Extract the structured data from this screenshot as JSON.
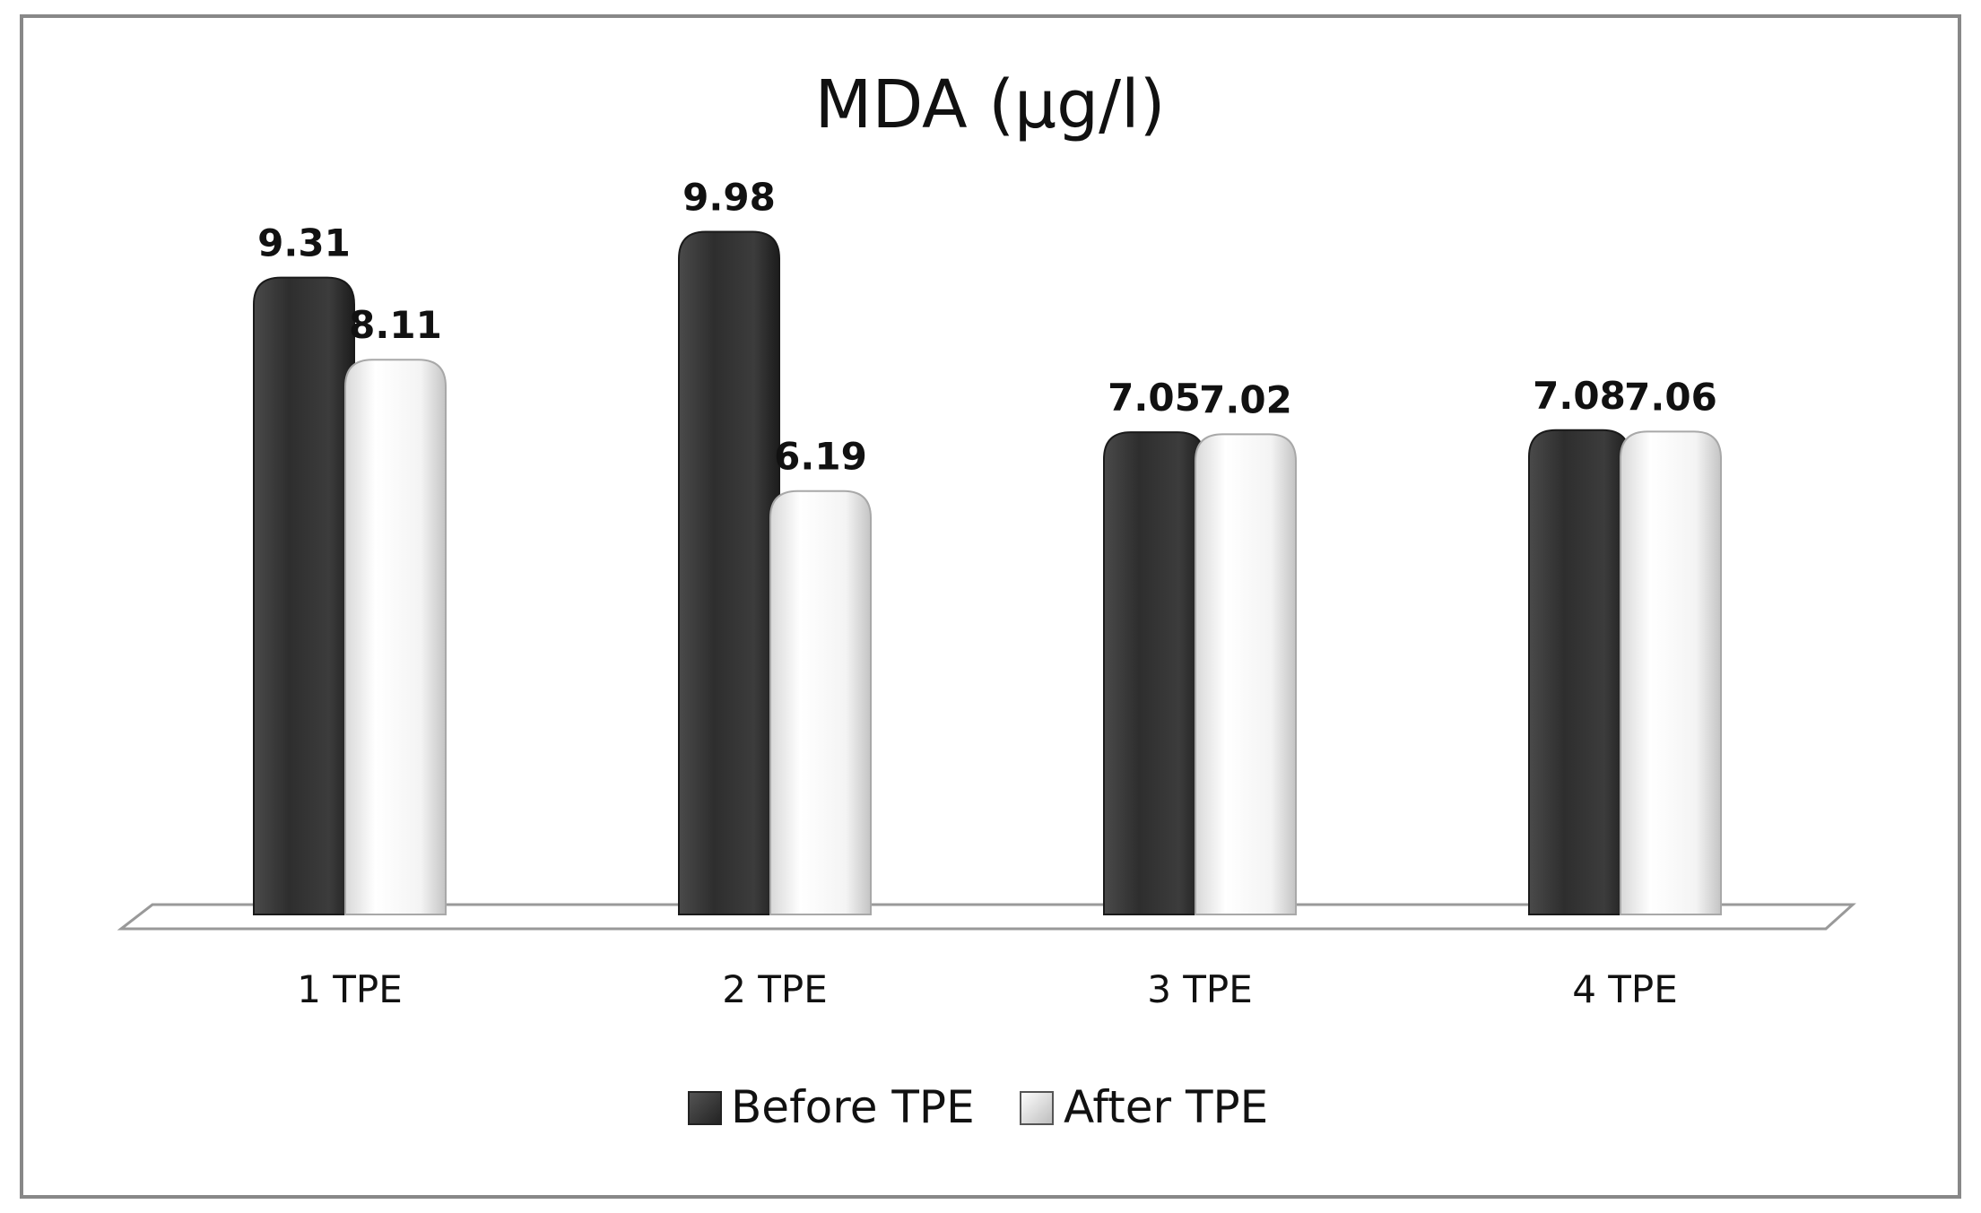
{
  "chart_data": {
    "type": "bar",
    "title": "MDA (µg/l)",
    "xlabel": "",
    "ylabel": "",
    "categories": [
      "1 TPE",
      "2 TPE",
      "3 TPE",
      "4 TPE"
    ],
    "series": [
      {
        "name": "Before TPE",
        "values": [
          9.31,
          9.98,
          7.05,
          7.08
        ],
        "value_labels": [
          "9.31",
          "9.98",
          "7.05",
          "7.08"
        ],
        "color": "#3a3a3a"
      },
      {
        "name": "After TPE",
        "values": [
          8.11,
          6.19,
          7.02,
          7.06
        ],
        "value_labels": [
          "8.11",
          "6.19",
          "7.02",
          "7.06"
        ],
        "color": "#f2f2f2"
      }
    ],
    "ylim": [
      0,
      10.5
    ],
    "grid": false,
    "legend": "bottom-center"
  }
}
